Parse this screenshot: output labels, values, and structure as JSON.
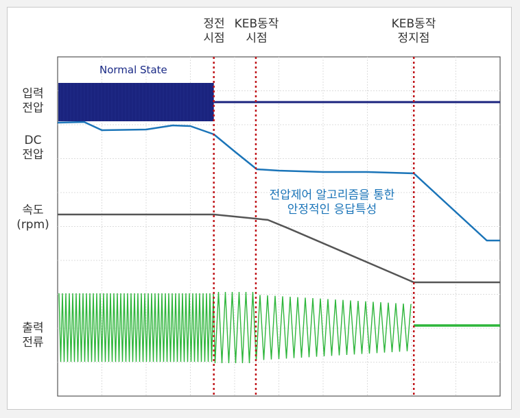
{
  "chart_data": {
    "type": "line",
    "title": "",
    "xlim": [
      0,
      100
    ],
    "events": [
      {
        "name": "power-outage",
        "lines": [
          "정전",
          "시점"
        ],
        "x": 35.3
      },
      {
        "name": "keb-start",
        "lines": [
          "KEB동작",
          "시점"
        ],
        "x": 44.8
      },
      {
        "name": "keb-stop",
        "lines": [
          "KEB동작",
          "정지점"
        ],
        "x": 80.5
      }
    ],
    "lanes": [
      {
        "name": "input-voltage",
        "lines": [
          "입력",
          "전압"
        ]
      },
      {
        "name": "dc-voltage",
        "lines": [
          "DC",
          "전압"
        ]
      },
      {
        "name": "speed",
        "lines": [
          "속도",
          "(rpm)"
        ]
      },
      {
        "name": "output-current",
        "lines": [
          "출력",
          "전류"
        ]
      }
    ],
    "state_label": "Normal State",
    "annotation": [
      "전압제어 알고리즘을 통한",
      "안정적인 응답특성"
    ],
    "series": [
      {
        "lane": "dc-voltage",
        "color": "#1a74b8",
        "x": [
          0,
          6,
          10,
          20,
          26,
          30,
          35.3,
          40,
          45,
          50,
          60,
          70,
          80.5,
          97,
          100
        ],
        "y": [
          82,
          83,
          71,
          72,
          78,
          77,
          65,
          40,
          14,
          12,
          10,
          10,
          8,
          -90,
          -90
        ]
      },
      {
        "lane": "speed",
        "color": "#555555",
        "x": [
          0,
          35.3,
          40,
          47.5,
          52,
          80.5,
          100
        ],
        "y": [
          100,
          100,
          97,
          92,
          80,
          0,
          0
        ]
      }
    ],
    "signals": [
      {
        "lane": "input-voltage",
        "kind": "ac-band",
        "until_x": 35.3,
        "color": "#1a237e",
        "after_level": 0.5
      },
      {
        "lane": "output-current",
        "kind": "ac-wave",
        "until_x": 80.5,
        "color": "#2db53a",
        "after_level": 0.5
      }
    ],
    "colors": {
      "event_line": "#c0171c",
      "grid": "#dcdcdc"
    }
  }
}
